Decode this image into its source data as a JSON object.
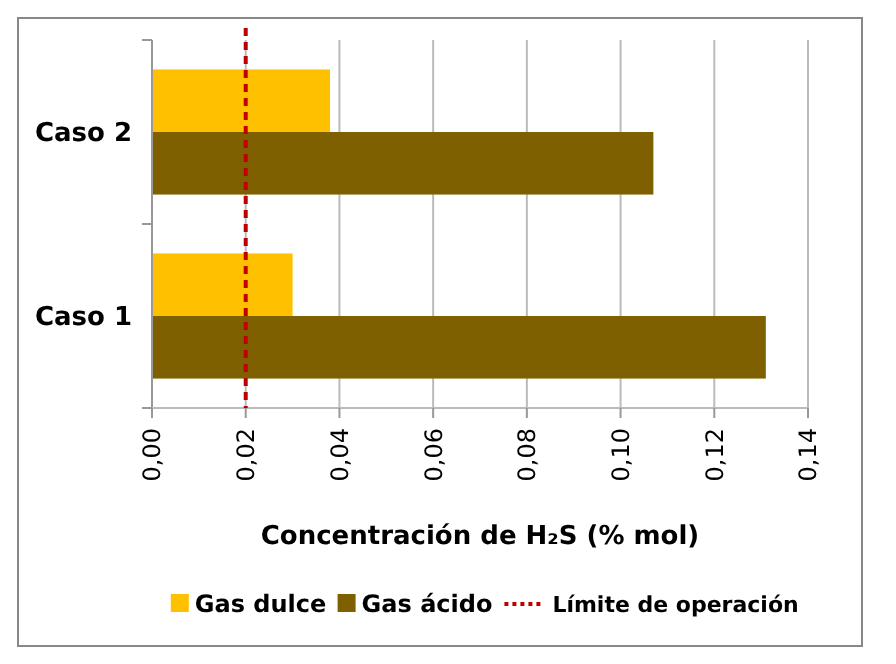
{
  "chart_data": {
    "type": "bar",
    "orientation": "horizontal",
    "categories": [
      "Caso 2",
      "Caso 1"
    ],
    "series": [
      {
        "name": "Gas dulce",
        "color": "#ffc000",
        "values": [
          0.038,
          0.03
        ]
      },
      {
        "name": "Gas ácido",
        "color": "#7f6000",
        "values": [
          0.107,
          0.131
        ]
      }
    ],
    "xlabel": "Concentración de H₂S (% mol)",
    "xlim": [
      0,
      0.14
    ],
    "xticks": [
      {
        "value": 0,
        "label": "0,00"
      },
      {
        "value": 0.02,
        "label": "0,02"
      },
      {
        "value": 0.04,
        "label": "0,04"
      },
      {
        "value": 0.06,
        "label": "0,06"
      },
      {
        "value": 0.08,
        "label": "0,08"
      },
      {
        "value": 0.1,
        "label": "0,10"
      },
      {
        "value": 0.12,
        "label": "0,12"
      },
      {
        "value": 0.14,
        "label": "0,14"
      }
    ],
    "ref_lines": [
      {
        "axis": "x",
        "value": 0.02,
        "label": "Límite de operación",
        "color": "#c00000",
        "line_style": "dashed"
      }
    ],
    "grid": "x",
    "legend": "bottom"
  }
}
